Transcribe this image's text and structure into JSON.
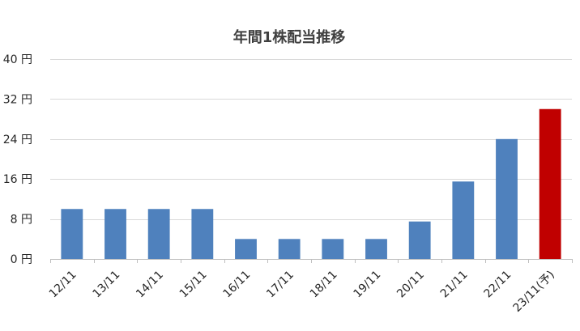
{
  "chart_data": {
    "type": "bar",
    "title": "年間1株配当推移",
    "xlabel": "",
    "ylabel": "",
    "ylim": [
      0,
      40
    ],
    "yticks": [
      0,
      8,
      16,
      24,
      32,
      40
    ],
    "ytick_suffix": " 円",
    "grid": true,
    "legend": "none",
    "categories": [
      "12/11",
      "13/11",
      "14/11",
      "15/11",
      "16/11",
      "17/11",
      "18/11",
      "19/11",
      "20/11",
      "21/11",
      "22/11",
      "23/11(予)"
    ],
    "values": [
      10,
      10,
      10,
      10,
      4,
      4,
      4,
      4,
      7.5,
      15.5,
      24,
      30
    ],
    "colors": {
      "actual": "#4f81bd",
      "forecast": "#c00000"
    },
    "forecast_categories": [
      "23/11(予)"
    ]
  }
}
